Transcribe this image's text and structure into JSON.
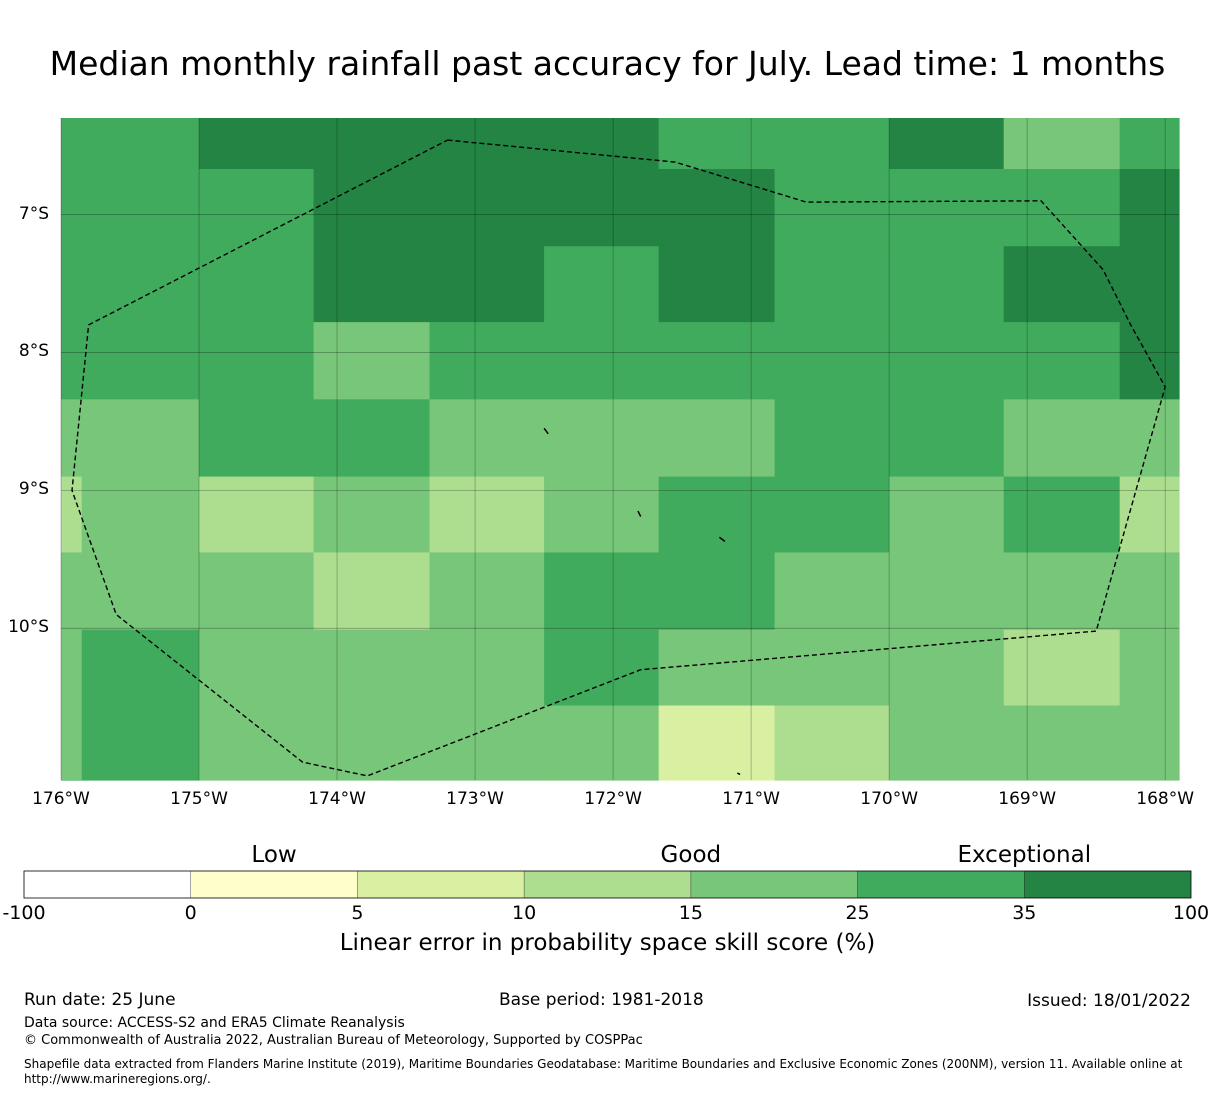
{
  "title": "Median monthly rainfall past accuracy for July. Lead time: 1 months",
  "map": {
    "lon_range": [
      -176,
      -167.9
    ],
    "lat_range": [
      -11.1,
      -6.3
    ],
    "lon_ticks": [
      {
        "value": -176,
        "label": "176°W"
      },
      {
        "value": -175,
        "label": "175°W"
      },
      {
        "value": -174,
        "label": "174°W"
      },
      {
        "value": -173,
        "label": "173°W"
      },
      {
        "value": -172,
        "label": "172°W"
      },
      {
        "value": -171,
        "label": "171°W"
      },
      {
        "value": -170,
        "label": "170°W"
      },
      {
        "value": -169,
        "label": "169°W"
      },
      {
        "value": -168,
        "label": "168°W"
      }
    ],
    "lat_ticks": [
      {
        "value": -7,
        "label": "7°S"
      },
      {
        "value": -8,
        "label": "8°S"
      },
      {
        "value": -9,
        "label": "9°S"
      },
      {
        "value": -10,
        "label": "10°S"
      }
    ],
    "grid": true,
    "grid_cells": {
      "columns_lon": [
        -176,
        -175,
        -174.17,
        -173.33,
        -172.5,
        -171.67,
        -170.83,
        -170,
        -169.17,
        -168.33,
        -167.9
      ],
      "rows_lat": [
        -6.3,
        -6.67,
        -7.23,
        -7.78,
        -8.34,
        -8.9,
        -9.45,
        -10.01,
        -10.56,
        -11.1
      ],
      "skill_class": [
        [
          5,
          6,
          6,
          6,
          6,
          5,
          5,
          6,
          4,
          5
        ],
        [
          5,
          5,
          6,
          6,
          6,
          6,
          5,
          5,
          5,
          6
        ],
        [
          5,
          5,
          6,
          6,
          5,
          6,
          5,
          5,
          6,
          6
        ],
        [
          5,
          5,
          4,
          5,
          5,
          5,
          5,
          5,
          5,
          6
        ],
        [
          4,
          5,
          5,
          4,
          4,
          4,
          5,
          5,
          4,
          4
        ],
        [
          4,
          3,
          4,
          3,
          4,
          5,
          5,
          4,
          5,
          3
        ],
        [
          4,
          4,
          3,
          4,
          5,
          5,
          4,
          4,
          4,
          4
        ],
        [
          5,
          4,
          4,
          4,
          5,
          4,
          4,
          4,
          3,
          4
        ],
        [
          5,
          4,
          4,
          4,
          4,
          2,
          3,
          4,
          4,
          4
        ]
      ],
      "edge_strips": [
        {
          "lon": [
            -176,
            -175.85
          ],
          "rows": [
            [
              -8.9,
              -9.45,
              3
            ],
            [
              -10.01,
              -11.1,
              4
            ]
          ]
        }
      ]
    },
    "eez_boundary_lonlat": [
      [
        -173.2,
        -6.46
      ],
      [
        -171.55,
        -6.62
      ],
      [
        -170.6,
        -6.91
      ],
      [
        -168.9,
        -6.9
      ],
      [
        -168.45,
        -7.4
      ],
      [
        -168.25,
        -7.8
      ],
      [
        -168.0,
        -8.25
      ],
      [
        -168.5,
        -10.02
      ],
      [
        -171.8,
        -10.3
      ],
      [
        -173.78,
        -11.07
      ],
      [
        -174.25,
        -10.97
      ],
      [
        -175.6,
        -9.9
      ],
      [
        -175.92,
        -9.0
      ],
      [
        -175.8,
        -7.8
      ],
      [
        -173.2,
        -6.46
      ]
    ],
    "islands_lonlat": [
      [
        [
          -172.5,
          -8.55
        ],
        [
          -172.47,
          -8.59
        ]
      ],
      [
        [
          -171.82,
          -9.15
        ],
        [
          -171.8,
          -9.19
        ]
      ],
      [
        [
          -171.23,
          -9.34
        ],
        [
          -171.19,
          -9.37
        ]
      ],
      [
        [
          -171.1,
          -11.05
        ],
        [
          -171.08,
          -11.06
        ]
      ]
    ]
  },
  "colorbar": {
    "categories": [
      {
        "label": "Low",
        "value": 2.5
      },
      {
        "label": "Good",
        "value": 15
      },
      {
        "label": "Exceptional",
        "value": 35
      }
    ],
    "bins": [
      {
        "from": -100,
        "to": 0,
        "color": "#ffffff"
      },
      {
        "from": 0,
        "to": 5,
        "color": "#ffffcc"
      },
      {
        "from": 5,
        "to": 10,
        "color": "#d9f0a3"
      },
      {
        "from": 10,
        "to": 15,
        "color": "#addd8e"
      },
      {
        "from": 15,
        "to": 25,
        "color": "#78c679"
      },
      {
        "from": 25,
        "to": 35,
        "color": "#41ab5d"
      },
      {
        "from": 35,
        "to": 100,
        "color": "#238443"
      }
    ],
    "tick_labels": [
      "-100",
      "0",
      "5",
      "10",
      "15",
      "25",
      "35",
      "100"
    ],
    "label": "Linear error in probability space skill score (%)"
  },
  "footer": {
    "run_date": "Run date: 25 June",
    "base_period": "Base period: 1981-2018",
    "issued": "Issued: 18/01/2022",
    "data_source": "Data source: ACCESS-S2 and ERA5 Climate Reanalysis",
    "copyright": "© Commonwealth of Australia 2022, Australian Bureau of Meteorology, Supported by COSPPac",
    "shapefile_line1": "Shapefile data extracted from Flanders Marine Institute (2019), Maritime Boundaries Geodatabase: Maritime Boundaries and Exclusive Economic Zones (200NM), version 11. Available online at",
    "shapefile_line2": "http://www.marineregions.org/."
  }
}
